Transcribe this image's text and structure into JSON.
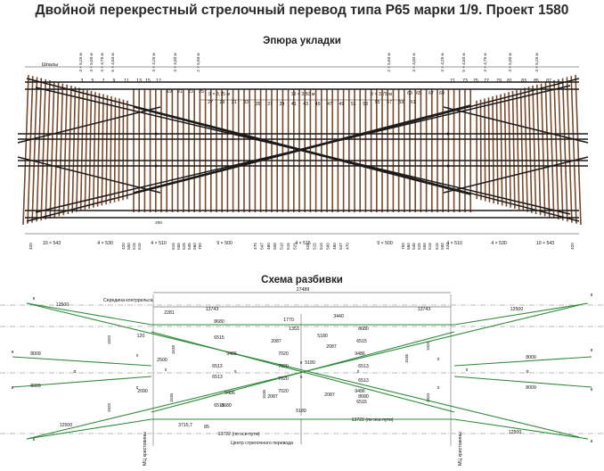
{
  "title": "Двойной перекрестный стрелочный перевод типа Р65 марки 1/9. Проект 1580",
  "top_section_title": "Эпюра укладки",
  "bottom_section_title": "Схема разбивки",
  "colors": {
    "sleeper": "#7a4a2a",
    "rail": "#1a1a1a",
    "layout_line": "#2e8b3a",
    "dim": "#333333"
  },
  "top": {
    "sleepers_label": "Шпалы",
    "left_numbers": [
      "1",
      "3",
      "5",
      "7",
      "9",
      "11",
      "13",
      "15",
      "17",
      "19",
      "21",
      "23",
      "25"
    ],
    "center_numbers": [
      "27",
      "29",
      "31",
      "33",
      "35",
      "37",
      "39",
      "41",
      "43",
      "45",
      "47",
      "49",
      "51",
      "53",
      "55",
      "57",
      "59",
      "61"
    ],
    "right_numbers": [
      "63",
      "65",
      "67",
      "69",
      "71",
      "73",
      "75",
      "77",
      "79",
      "81",
      "83",
      "85",
      "87"
    ],
    "spacing_labels_top": [
      "4 × 5,25 м",
      "4 × 5,00 м",
      "4 × 4,75 м",
      "5 × 4,50 м",
      "4 × 4,25 м",
      "4 × 4,00 м",
      "2 × 5,50 м",
      "9 × 3,75 м",
      "19 × 3,50 м",
      "9 × 3,75 м",
      "2 × 5,50 м",
      "4 × 4,00 м",
      "4 × 4,25 м",
      "5 × 4,50 м",
      "4 × 4,75 м",
      "4 × 5,00 м",
      "4 × 5,25 м"
    ],
    "bottom_dims_left": [
      "420",
      "10 × 543",
      "4 × 530",
      "420",
      "500",
      "515",
      "4 × 510",
      "515",
      "555",
      "525",
      "545",
      "560",
      "700",
      "9 × 500"
    ],
    "bottom_dims_center": [
      "470",
      "547",
      "480",
      "500",
      "510",
      "515",
      "525",
      "4 × 515",
      "525",
      "515",
      "510",
      "500",
      "480",
      "547",
      "470"
    ],
    "bottom_dims_right": [
      "9 × 500",
      "700",
      "560",
      "545",
      "525",
      "555",
      "515",
      "4 × 510",
      "515",
      "500",
      "420",
      "4 × 530",
      "10 × 543",
      "420"
    ],
    "dim_200": "200"
  },
  "bottom": {
    "contrarail_label": "Середина контррельса",
    "overall": "27488",
    "dims": [
      "13743",
      "13743",
      "12500",
      "12500",
      "12500",
      "12500",
      "2281",
      "8680",
      "8680",
      "8680",
      "8680",
      "1770",
      "3440",
      "1353",
      "5180",
      "5180",
      "5180",
      "120",
      "1920",
      "1535",
      "1920",
      "1535",
      "1535",
      "1920",
      "1920",
      "1535",
      "6515",
      "6515",
      "6515",
      "6515",
      "9486",
      "9486",
      "9486",
      "9486",
      "2087",
      "2087",
      "2087",
      "2087",
      "6513",
      "6513",
      "6513",
      "6513",
      "7020",
      "7020",
      "7020",
      "7020",
      "2500",
      "2090",
      "8009",
      "8009",
      "8009",
      "8009",
      "3715,7",
      "85",
      "13722 (по оси пути)",
      "13722 (по оси пути)",
      "8",
      "8",
      "8",
      "8",
      "8",
      "8",
      "8",
      "8",
      "α",
      "α",
      "0",
      "0",
      "0",
      "0",
      "0",
      "0",
      "0",
      "0",
      "0",
      "0"
    ],
    "center_label": "Центр стрелочного перевода",
    "mc_left": "МЦ крестовины",
    "mc_right": "МЦ крестовины"
  }
}
